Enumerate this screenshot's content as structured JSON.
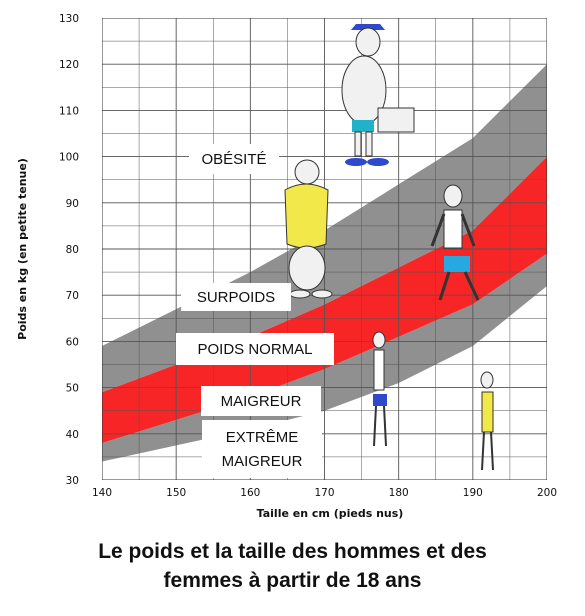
{
  "caption": {
    "line1": "Le poids et la taille des hommes et des",
    "line2": "femmes à partir de 18 ans"
  },
  "chart_data": {
    "type": "area",
    "title": "Le poids et la taille des hommes et des femmes à partir de 18 ans",
    "xlabel": "Taille en cm (pieds nus)",
    "ylabel": "Poids en kg (en petite tenue)",
    "xlim": [
      140,
      200
    ],
    "ylim": [
      30,
      130
    ],
    "x_ticks": [
      140,
      150,
      160,
      170,
      180,
      190,
      200
    ],
    "y_ticks": [
      30,
      40,
      50,
      60,
      70,
      80,
      90,
      100,
      110,
      120,
      130
    ],
    "grid": true,
    "x": [
      140,
      150,
      160,
      170,
      180,
      190,
      200
    ],
    "boundaries": [
      {
        "name": "b1",
        "values": [
          34,
          37.5,
          41,
          45,
          51,
          59,
          72
        ]
      },
      {
        "name": "b2",
        "values": [
          38,
          43,
          48,
          54,
          61,
          68,
          79
        ]
      },
      {
        "name": "b3",
        "values": [
          49,
          55,
          61,
          68,
          76,
          84,
          100
        ]
      },
      {
        "name": "b4",
        "values": [
          59,
          67,
          75,
          84,
          94,
          104,
          120
        ]
      }
    ],
    "bands": [
      {
        "lower": "b1",
        "upper": "b2",
        "color": "#909090"
      },
      {
        "lower": "b2",
        "upper": "b3",
        "color": "#f72525"
      },
      {
        "lower": "b3",
        "upper": "b4",
        "color": "#909090"
      }
    ],
    "zone_labels": [
      {
        "lines": [
          "OBÉSITÉ"
        ]
      },
      {
        "lines": [
          "SURPOIDS"
        ]
      },
      {
        "lines": [
          "POIDS NORMAL"
        ]
      },
      {
        "lines": [
          "MAIGREUR"
        ]
      },
      {
        "lines": [
          "EXTRÊME",
          "MAIGREUR"
        ]
      }
    ],
    "colors": {
      "background": "#ffffff",
      "grid": "#555555",
      "gray_band": "#909090",
      "red_band": "#f72525"
    }
  }
}
